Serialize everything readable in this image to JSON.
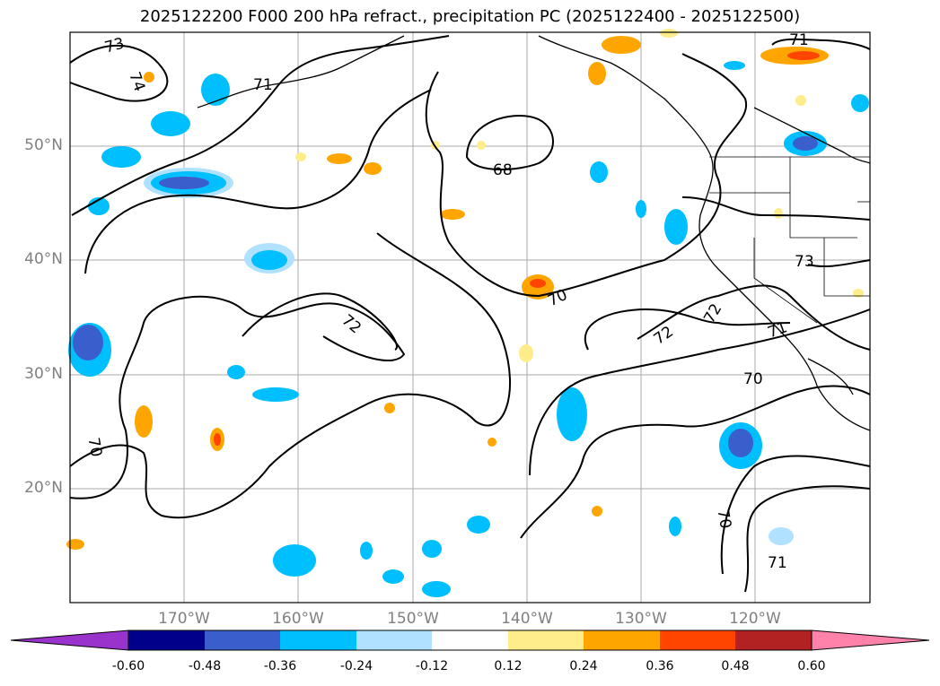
{
  "title": "2025122200 F000 200 hPa refract., precipitation PC (2025122400 - 2025122500)",
  "map": {
    "lat_labels": [
      "50°N",
      "40°N",
      "30°N",
      "20°N"
    ],
    "lon_labels": [
      "170°W",
      "160°W",
      "150°W",
      "140°W",
      "130°W",
      "120°W"
    ],
    "contour_labels": [
      "73",
      "74",
      "71",
      "68",
      "70",
      "72",
      "72",
      "72",
      "71",
      "70",
      "70",
      "73",
      "71",
      "70",
      "71"
    ]
  },
  "colorbar": {
    "colors": [
      "#9933cc",
      "#00008b",
      "#3a5fcd",
      "#00bfff",
      "#b0e2ff",
      "#ffffff",
      "#ffec8b",
      "#ffa500",
      "#ff4500",
      "#b22222",
      "#ff82ab"
    ],
    "tick_labels": [
      "-0.60",
      "-0.48",
      "-0.36",
      "-0.24",
      "-0.12",
      "0.12",
      "0.24",
      "0.36",
      "0.48",
      "0.60"
    ]
  }
}
